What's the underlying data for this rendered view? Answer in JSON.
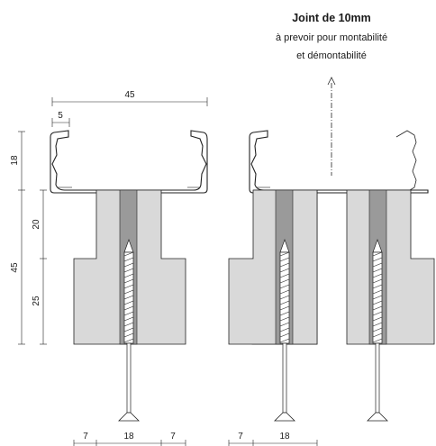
{
  "header": {
    "title": "Joint de 10mm",
    "line1": "à prevoir pour montabilité",
    "line2": "et démontabilité"
  },
  "dims": {
    "top_width": "45",
    "lip": "5",
    "rail_height": "18",
    "neck_height": "20",
    "total_height": "45",
    "base_height": "25",
    "bottom_left_a": "7",
    "bottom_left_b": "18",
    "bottom_left_c": "7",
    "bottom_right_a": "7",
    "bottom_right_b": "18"
  }
}
